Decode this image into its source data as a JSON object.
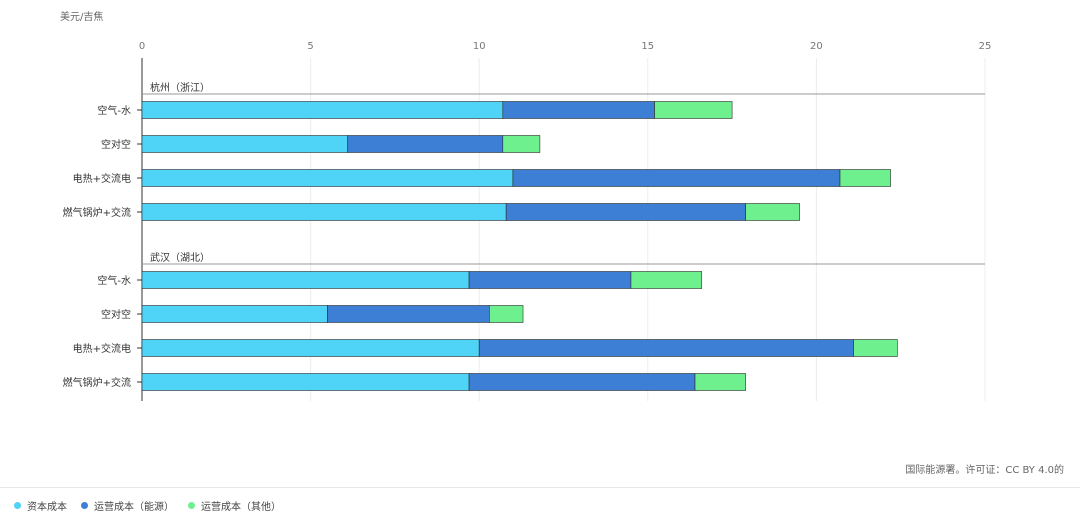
{
  "chart_data": {
    "type": "bar",
    "orientation": "horizontal",
    "stacked": true,
    "unit_label": "美元/吉焦",
    "xlim": [
      0,
      25
    ],
    "xticks": [
      0,
      5,
      10,
      15,
      20,
      25
    ],
    "grid": true,
    "series_names": [
      "资本成本",
      "运营成本（能源）",
      "运营成本（其他）"
    ],
    "colors": [
      "#4fd3f7",
      "#3d7fd4",
      "#6ef08e"
    ],
    "groups": [
      {
        "name": "杭州（浙江）",
        "categories": [
          "空气-水",
          "空对空",
          "电热+交流电",
          "燃气锅炉+交流"
        ],
        "series": [
          {
            "name": "资本成本",
            "values": [
              10.7,
              6.1,
              11.0,
              10.8
            ]
          },
          {
            "name": "运营成本（能源）",
            "values": [
              4.5,
              4.6,
              9.7,
              7.1
            ]
          },
          {
            "name": "运营成本（其他）",
            "values": [
              2.3,
              1.1,
              1.5,
              1.6
            ]
          }
        ]
      },
      {
        "name": "武汉（湖北）",
        "categories": [
          "空气-水",
          "空对空",
          "电热+交流电",
          "燃气锅炉+交流"
        ],
        "series": [
          {
            "name": "资本成本",
            "values": [
              9.7,
              5.5,
              10.0,
              9.7
            ]
          },
          {
            "name": "运营成本（能源）",
            "values": [
              4.8,
              4.8,
              11.1,
              6.7
            ]
          },
          {
            "name": "运营成本（其他）",
            "values": [
              2.1,
              1.0,
              1.3,
              1.5
            ]
          }
        ]
      }
    ]
  },
  "source_text": "国际能源署。许可证：CC BY 4.0的",
  "legend": [
    {
      "label": "资本成本",
      "color": "#4fd3f7"
    },
    {
      "label": "运营成本（能源）",
      "color": "#3d7fd4"
    },
    {
      "label": "运营成本（其他）",
      "color": "#6ef08e"
    }
  ]
}
